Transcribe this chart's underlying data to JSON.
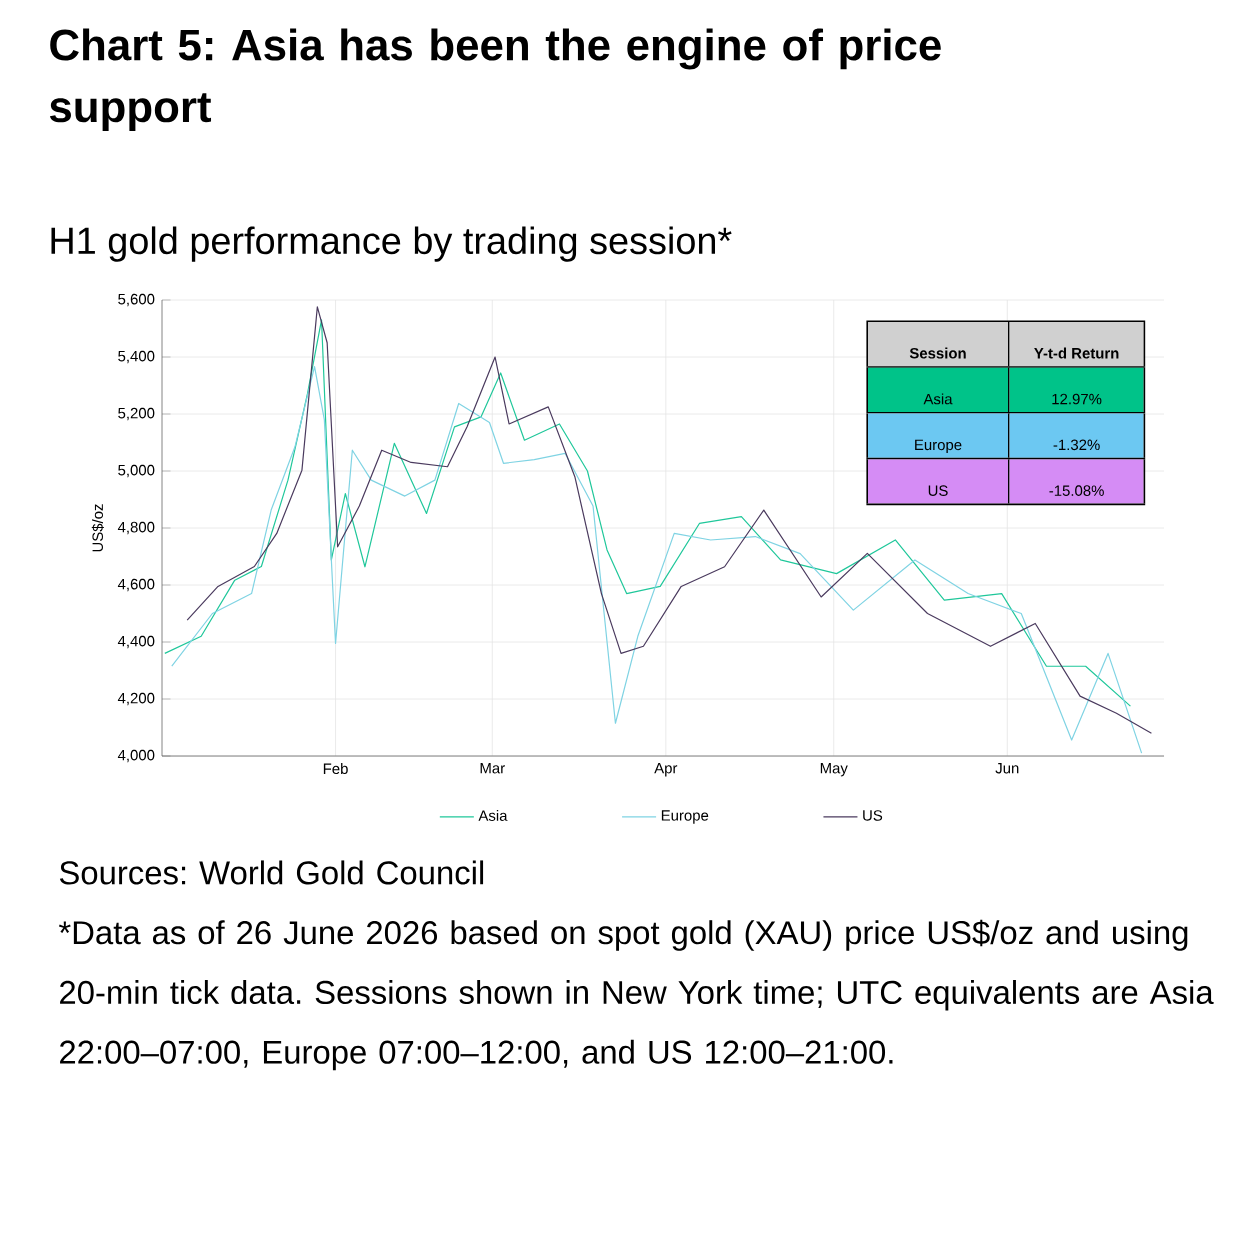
{
  "chart_data": {
    "type": "line",
    "title": "Chart 5: Asia has been the engine of price support",
    "subtitle": "H1 gold performance by trading session*",
    "ylabel": "US$/oz",
    "xlim": [
      "2026-01-01",
      "2026-06-29"
    ],
    "xticks": [
      {
        "value": "2026-02-01",
        "label": "Feb"
      },
      {
        "value": "2026-03-01",
        "label": "Mar"
      },
      {
        "value": "2026-04-01",
        "label": "Apr"
      },
      {
        "value": "2026-05-01",
        "label": "May"
      },
      {
        "value": "2026-06-01",
        "label": "Jun"
      }
    ],
    "ylim": [
      4000,
      5600
    ],
    "yticks": [
      {
        "value": 4000,
        "label": "4,000"
      },
      {
        "value": 4200,
        "label": "4,200"
      },
      {
        "value": 4400,
        "label": "4,400"
      },
      {
        "value": 4600,
        "label": "4,600"
      },
      {
        "value": 4800,
        "label": "4,800"
      },
      {
        "value": 5000,
        "label": "5,000"
      },
      {
        "value": 5200,
        "label": "5,200"
      },
      {
        "value": 5400,
        "label": "5,400"
      },
      {
        "value": 5600,
        "label": "5,600"
      }
    ],
    "grid": true,
    "legend": "bottom",
    "series": [
      {
        "name": "Asia",
        "color": "#1fc79a",
        "x": [
          "2026-01-01T12:00",
          "2026-01-08",
          "2026-01-14",
          "2026-01-18T18:00",
          "2026-01-23T12:00",
          "2026-01-27",
          "2026-01-29T12:00",
          "2026-01-31T06:00",
          "2026-02-02T18:00",
          "2026-02-06T06:00",
          "2026-02-11T12:00",
          "2026-02-17T06:00",
          "2026-02-22T06:00",
          "2026-02-27",
          "2026-03-02T12:00",
          "2026-03-06T18:00",
          "2026-03-13",
          "2026-03-18",
          "2026-03-21T12:00",
          "2026-03-25",
          "2026-03-31",
          "2026-04-07",
          "2026-04-14T12:00",
          "2026-04-21T12:00",
          "2026-05-01T12:00",
          "2026-05-12",
          "2026-05-20T18:00",
          "2026-05-31",
          "2026-06-08",
          "2026-06-15",
          "2026-06-23"
        ],
        "values": [
          4360,
          4420,
          4617,
          4665,
          4968,
          5272,
          5530,
          4688,
          4921,
          4664,
          5097,
          4851,
          5155,
          5190,
          5344,
          5108,
          5165,
          5000,
          4723,
          4570,
          4595,
          4816,
          4840,
          4688,
          4640,
          4758,
          4547,
          4570,
          4315,
          4315,
          4175
        ]
      },
      {
        "name": "Europe",
        "color": "#7fd3e3",
        "x": [
          "2026-01-02T18:00",
          "2026-01-10",
          "2026-01-17",
          "2026-01-20T12:00",
          "2026-01-24T18:00",
          "2026-01-28T06:00",
          "2026-01-30",
          "2026-02-01",
          "2026-02-04",
          "2026-02-07T09:00",
          "2026-02-13T09:00",
          "2026-02-18T18:00",
          "2026-02-23",
          "2026-02-28T12:00",
          "2026-03-03",
          "2026-03-08T12:00",
          "2026-03-14",
          "2026-03-19",
          "2026-03-23",
          "2026-03-27",
          "2026-04-02T12:00",
          "2026-04-09",
          "2026-04-17",
          "2026-04-25",
          "2026-05-04T12:00",
          "2026-05-15T12:00",
          "2026-05-25",
          "2026-06-03T12:00",
          "2026-06-12T12:00",
          "2026-06-19",
          "2026-06-25"
        ],
        "values": [
          4315,
          4500,
          4570,
          4863,
          5085,
          5366,
          5180,
          4395,
          5073,
          4968,
          4912,
          4968,
          5237,
          5170,
          5027,
          5040,
          5062,
          4877,
          4115,
          4420,
          4781,
          4758,
          4770,
          4710,
          4512,
          4688,
          4570,
          4500,
          4056,
          4360,
          4010
        ]
      },
      {
        "name": "US",
        "color": "#4a3a5e",
        "x": [
          "2026-01-05T12:00",
          "2026-01-11",
          "2026-01-17T12:00",
          "2026-01-21T12:00",
          "2026-01-26",
          "2026-01-28T18:00",
          "2026-01-30T12:00",
          "2026-02-01T09:00",
          "2026-02-05T06:00",
          "2026-02-09T06:00",
          "2026-02-14T12:00",
          "2026-02-21",
          "2026-02-24T12:00",
          "2026-03-01T12:00",
          "2026-03-04",
          "2026-03-11",
          "2026-03-15T18:00",
          "2026-03-20T12:00",
          "2026-03-24",
          "2026-03-28",
          "2026-04-03T18:00",
          "2026-04-11T12:00",
          "2026-04-18T12:00",
          "2026-04-28T18:00",
          "2026-05-07",
          "2026-05-17T18:00",
          "2026-05-29",
          "2026-06-06",
          "2026-06-14",
          "2026-06-20T12:00",
          "2026-06-26T18:00"
        ],
        "values": [
          4477,
          4595,
          4665,
          4781,
          5003,
          5576,
          5450,
          4734,
          4877,
          5073,
          5030,
          5015,
          5155,
          5400,
          5165,
          5225,
          4980,
          4570,
          4360,
          4385,
          4595,
          4664,
          4863,
          4558,
          4711,
          4500,
          4385,
          4465,
          4210,
          4150,
          4080
        ]
      }
    ],
    "annotations": [
      "Session",
      "Y-t-d Return",
      "Asia",
      "12.97%",
      "Europe",
      "-1.32%",
      "US",
      "-15.08%",
      "Sources: World Gold Council",
      "*Data as of 26 June 2026 based on spot gold (XAU) price US$/oz and using 20-min tick data. Sessions shown in New York time; UTC equivalents are Asia 22:00–07:00, Europe 07:00–12:00, and US 12:00–21:00."
    ]
  }
}
